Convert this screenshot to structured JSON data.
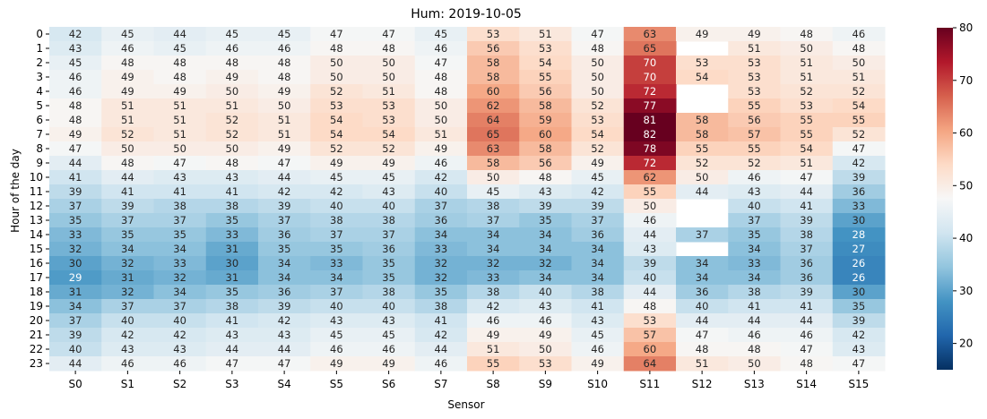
{
  "chart_data": {
    "type": "heatmap",
    "title": "Hum: 2019-10-05",
    "xlabel": "Sensor",
    "ylabel": "Hour of the day",
    "x_categories": [
      "S0",
      "S1",
      "S2",
      "S3",
      "S4",
      "S5",
      "S6",
      "S7",
      "S8",
      "S9",
      "S10",
      "S11",
      "S12",
      "S13",
      "S14",
      "S15"
    ],
    "y_categories": [
      "0",
      "1",
      "2",
      "3",
      "4",
      "5",
      "6",
      "7",
      "8",
      "9",
      "10",
      "11",
      "12",
      "13",
      "14",
      "15",
      "16",
      "17",
      "18",
      "19",
      "20",
      "21",
      "22",
      "23"
    ],
    "values": [
      [
        42,
        45,
        44,
        45,
        45,
        47,
        47,
        45,
        53,
        51,
        47,
        63,
        49,
        49,
        48,
        46
      ],
      [
        43,
        46,
        45,
        46,
        46,
        48,
        48,
        46,
        56,
        53,
        48,
        65,
        null,
        51,
        50,
        48
      ],
      [
        45,
        48,
        48,
        48,
        48,
        50,
        50,
        47,
        58,
        54,
        50,
        70,
        53,
        53,
        51,
        50
      ],
      [
        46,
        49,
        48,
        49,
        48,
        50,
        50,
        48,
        58,
        55,
        50,
        70,
        54,
        53,
        51,
        51
      ],
      [
        46,
        49,
        49,
        50,
        49,
        52,
        51,
        48,
        60,
        56,
        50,
        72,
        null,
        53,
        52,
        52
      ],
      [
        48,
        51,
        51,
        51,
        50,
        53,
        53,
        50,
        62,
        58,
        52,
        77,
        null,
        55,
        53,
        54
      ],
      [
        48,
        51,
        51,
        52,
        51,
        54,
        53,
        50,
        64,
        59,
        53,
        81,
        58,
        56,
        55,
        55
      ],
      [
        49,
        52,
        51,
        52,
        51,
        54,
        54,
        51,
        65,
        60,
        54,
        82,
        58,
        57,
        55,
        52
      ],
      [
        47,
        50,
        50,
        50,
        49,
        52,
        52,
        49,
        63,
        58,
        52,
        78,
        55,
        55,
        54,
        47
      ],
      [
        44,
        48,
        47,
        48,
        47,
        49,
        49,
        46,
        58,
        56,
        49,
        72,
        52,
        52,
        51,
        42
      ],
      [
        41,
        44,
        43,
        43,
        44,
        45,
        45,
        42,
        50,
        48,
        45,
        62,
        50,
        46,
        47,
        39
      ],
      [
        39,
        41,
        41,
        41,
        42,
        42,
        43,
        40,
        45,
        43,
        42,
        55,
        44,
        43,
        44,
        36
      ],
      [
        37,
        39,
        38,
        38,
        39,
        40,
        40,
        37,
        38,
        39,
        39,
        50,
        null,
        40,
        41,
        33
      ],
      [
        35,
        37,
        37,
        35,
        37,
        38,
        38,
        36,
        37,
        35,
        37,
        46,
        null,
        37,
        39,
        30
      ],
      [
        33,
        35,
        35,
        33,
        36,
        37,
        37,
        34,
        34,
        34,
        36,
        44,
        37,
        35,
        38,
        28
      ],
      [
        32,
        34,
        34,
        31,
        35,
        35,
        36,
        33,
        34,
        34,
        34,
        43,
        null,
        34,
        37,
        27
      ],
      [
        30,
        32,
        33,
        30,
        34,
        33,
        35,
        32,
        32,
        32,
        34,
        39,
        34,
        33,
        36,
        26
      ],
      [
        29,
        31,
        32,
        31,
        34,
        34,
        35,
        32,
        33,
        34,
        34,
        40,
        34,
        34,
        36,
        26
      ],
      [
        31,
        32,
        34,
        35,
        36,
        37,
        38,
        35,
        38,
        40,
        38,
        44,
        36,
        38,
        39,
        30
      ],
      [
        34,
        37,
        37,
        38,
        39,
        40,
        40,
        38,
        42,
        43,
        41,
        48,
        40,
        41,
        41,
        35
      ],
      [
        37,
        40,
        40,
        41,
        42,
        43,
        43,
        41,
        46,
        46,
        43,
        53,
        44,
        44,
        44,
        39
      ],
      [
        39,
        42,
        42,
        43,
        43,
        45,
        45,
        42,
        49,
        49,
        45,
        57,
        47,
        46,
        46,
        42
      ],
      [
        40,
        43,
        43,
        44,
        44,
        46,
        46,
        44,
        51,
        50,
        46,
        60,
        48,
        48,
        47,
        43
      ],
      [
        44,
        46,
        46,
        47,
        47,
        49,
        49,
        46,
        55,
        53,
        49,
        64,
        51,
        50,
        48,
        47
      ]
    ],
    "colorbar": {
      "colormap": "RdBu_r",
      "vmin": 15,
      "vmax": 80,
      "ticks": [
        "20",
        "30",
        "40",
        "50",
        "60",
        "70",
        "80"
      ]
    }
  }
}
